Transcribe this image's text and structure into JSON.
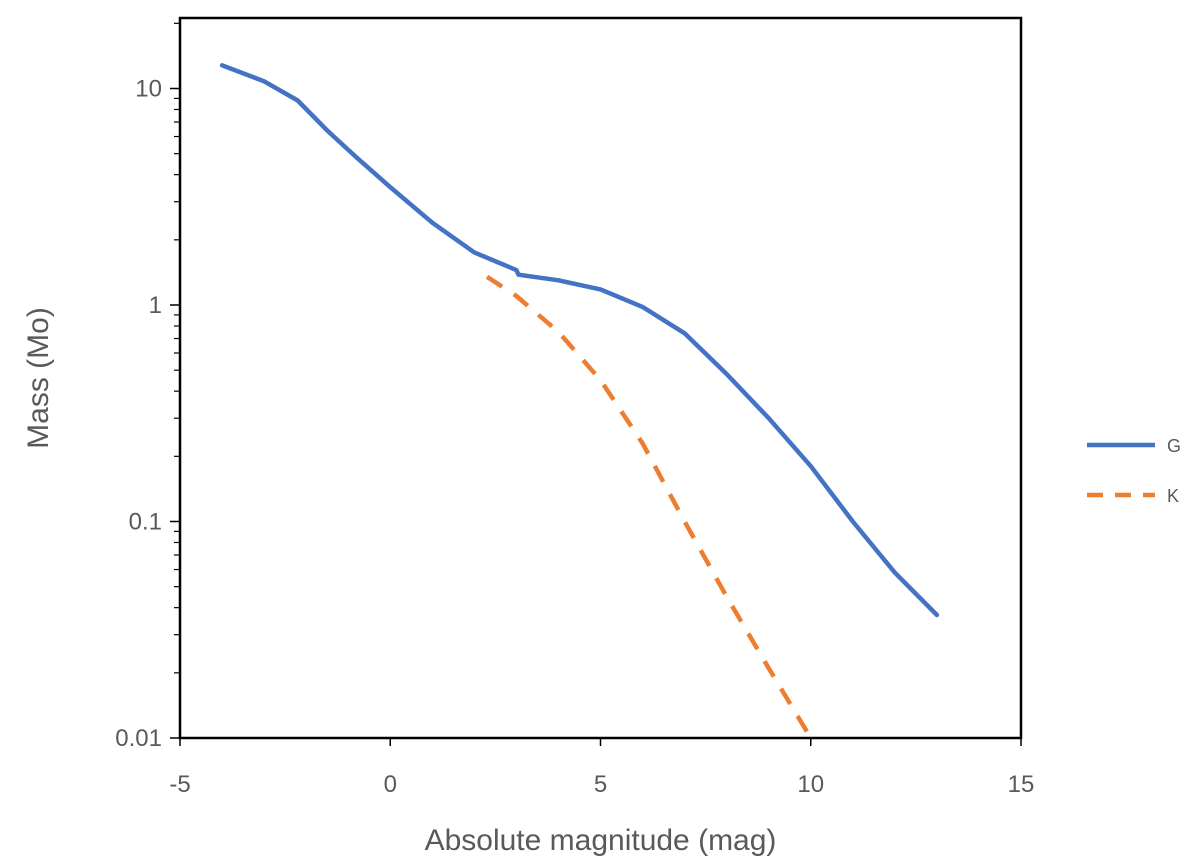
{
  "chart_data": {
    "type": "line",
    "xlabel": "Absolute magnitude (mag)",
    "ylabel": "Mass (Mo)",
    "xlim": [
      -5,
      15
    ],
    "ylim": [
      0.01,
      20
    ],
    "yscale": "log",
    "x_ticks": [
      "-5",
      "0",
      "5",
      "10",
      "15"
    ],
    "y_ticks": [
      "0.01",
      "0.1",
      "1",
      "10"
    ],
    "grid": false,
    "legend_position": "right",
    "series": [
      {
        "name": "G",
        "color": "#4472C4",
        "style": "solid",
        "points": [
          [
            -4.0,
            12.8
          ],
          [
            -3.0,
            10.8
          ],
          [
            -2.2,
            8.8
          ],
          [
            -1.5,
            6.4
          ],
          [
            -0.8,
            4.8
          ],
          [
            0.0,
            3.5
          ],
          [
            1.0,
            2.4
          ],
          [
            2.0,
            1.75
          ],
          [
            3.0,
            1.45
          ],
          [
            3.05,
            1.38
          ],
          [
            4.0,
            1.3
          ],
          [
            5.0,
            1.18
          ],
          [
            6.0,
            0.98
          ],
          [
            7.0,
            0.74
          ],
          [
            8.0,
            0.48
          ],
          [
            9.0,
            0.3
          ],
          [
            10.0,
            0.18
          ],
          [
            11.0,
            0.1
          ],
          [
            12.0,
            0.058
          ],
          [
            13.0,
            0.037
          ]
        ]
      },
      {
        "name": "K",
        "color": "#ED7D31",
        "style": "dashed",
        "points": [
          [
            2.3,
            1.35
          ],
          [
            3.0,
            1.1
          ],
          [
            4.0,
            0.75
          ],
          [
            5.0,
            0.45
          ],
          [
            6.0,
            0.23
          ],
          [
            7.0,
            0.1
          ],
          [
            8.0,
            0.045
          ],
          [
            9.0,
            0.021
          ],
          [
            10.0,
            0.01
          ]
        ]
      }
    ]
  }
}
